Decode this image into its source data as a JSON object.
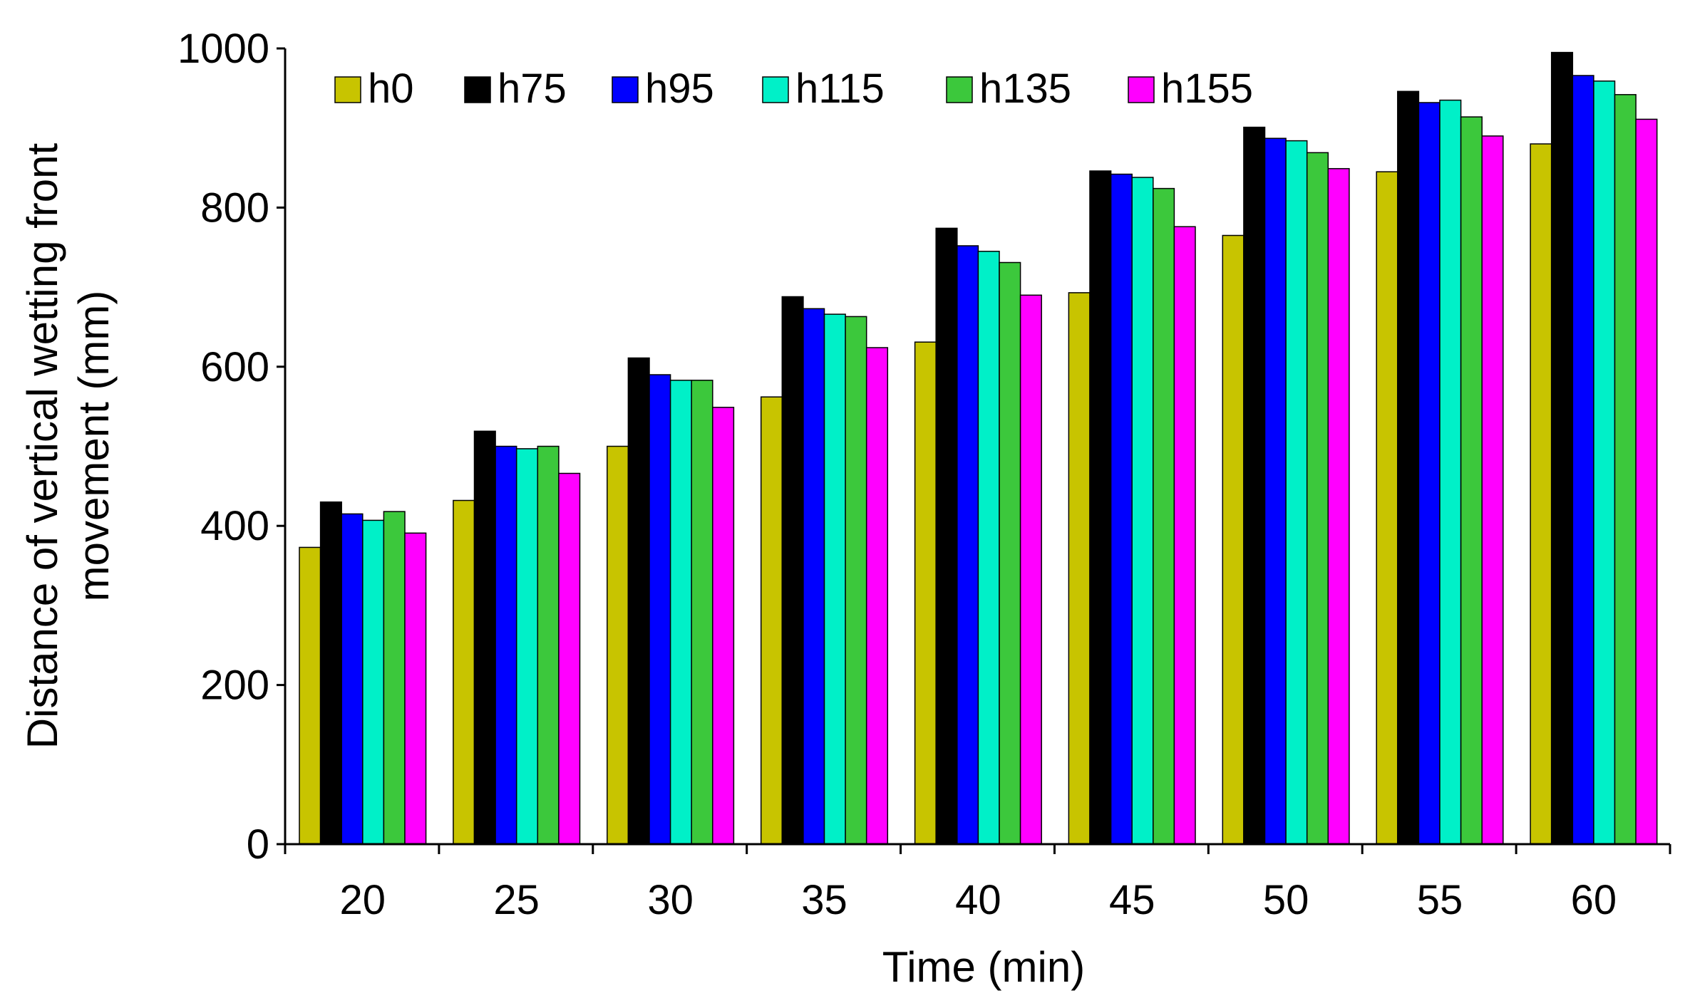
{
  "chart_data": {
    "type": "bar",
    "title": "",
    "xlabel": "Time (min)",
    "ylabel_lines": [
      "Distance of vertical wetting front",
      "movement (mm)"
    ],
    "categories": [
      "20",
      "25",
      "30",
      "35",
      "40",
      "45",
      "50",
      "55",
      "60"
    ],
    "ylim": [
      0,
      1000
    ],
    "yticks": [
      "0",
      "200",
      "400",
      "600",
      "800",
      "1000"
    ],
    "grid": false,
    "legend_position": "top",
    "series": [
      {
        "name": "h0",
        "color": "#c8c400",
        "values": [
          373,
          432,
          500,
          562,
          631,
          693,
          765,
          845,
          880
        ]
      },
      {
        "name": "h75",
        "color": "#000000",
        "values": [
          430,
          519,
          611,
          688,
          774,
          846,
          901,
          946,
          995
        ]
      },
      {
        "name": "h95",
        "color": "#0000ff",
        "values": [
          415,
          500,
          590,
          673,
          752,
          842,
          887,
          932,
          966
        ]
      },
      {
        "name": "h115",
        "color": "#00f0c8",
        "values": [
          407,
          497,
          583,
          666,
          745,
          838,
          884,
          935,
          959
        ]
      },
      {
        "name": "h135",
        "color": "#3cc83c",
        "values": [
          418,
          500,
          583,
          663,
          731,
          824,
          869,
          914,
          942
        ]
      },
      {
        "name": "h155",
        "color": "#ff00ff",
        "values": [
          391,
          466,
          549,
          624,
          690,
          776,
          849,
          890,
          911
        ]
      }
    ]
  }
}
